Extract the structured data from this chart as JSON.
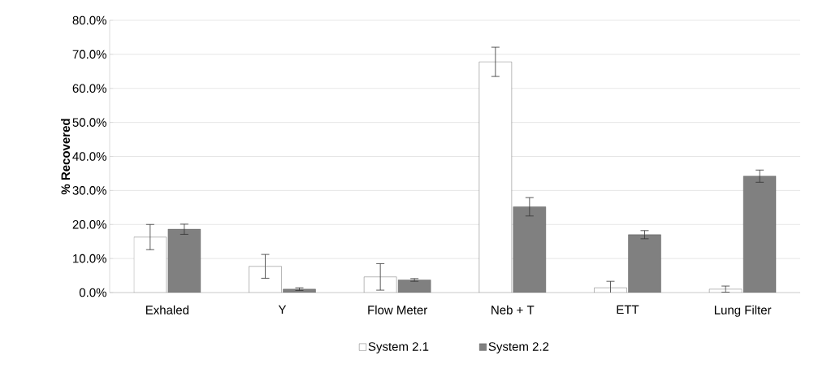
{
  "chart_data": {
    "type": "bar",
    "ylabel": "% Recovered",
    "categories": [
      "Exhaled",
      "Y",
      "Flow Meter",
      "Neb + T",
      "ETT",
      "Lung Filter"
    ],
    "series": [
      {
        "name": "System 2.1",
        "color": "#ffffff",
        "values": [
          16.3,
          7.7,
          4.6,
          67.8,
          1.4,
          1.0
        ],
        "errors": [
          3.7,
          3.5,
          3.9,
          4.3,
          1.9,
          0.9
        ]
      },
      {
        "name": "System 2.2",
        "color": "#808080",
        "values": [
          18.6,
          1.0,
          3.7,
          25.2,
          17.0,
          34.2
        ],
        "errors": [
          1.5,
          0.4,
          0.4,
          2.7,
          1.2,
          1.8
        ]
      }
    ],
    "ylim": [
      0,
      80
    ],
    "yticks": [
      {
        "value": 0,
        "label": "0.0%"
      },
      {
        "value": 10,
        "label": "10.0%"
      },
      {
        "value": 20,
        "label": "20.0%"
      },
      {
        "value": 30,
        "label": "30.0%"
      },
      {
        "value": 40,
        "label": "40.0%"
      },
      {
        "value": 50,
        "label": "50.0%"
      },
      {
        "value": 60,
        "label": "60.0%"
      },
      {
        "value": 70,
        "label": "70.0%"
      },
      {
        "value": 80,
        "label": "80.0%"
      }
    ],
    "grid": "y",
    "legend": "bottom"
  }
}
